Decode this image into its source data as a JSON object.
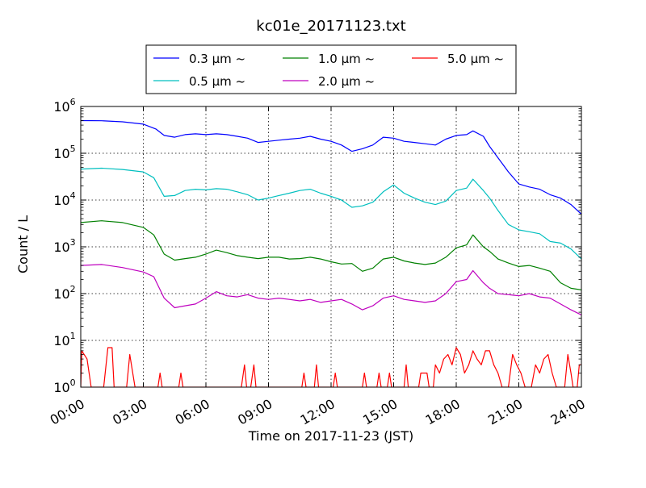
{
  "chart_data": {
    "type": "line",
    "title": "kc01e_20171123.txt",
    "xlabel": "Time on 2017-11-23 (JST)",
    "ylabel": "Count / L",
    "x_unit": "hours",
    "xlim": [
      0,
      24
    ],
    "ylim": [
      1,
      1000000
    ],
    "yscale": "log",
    "grid": true,
    "legend_position": "top-center",
    "x_tick_labels": [
      "00:00",
      "03:00",
      "06:00",
      "09:00",
      "12:00",
      "15:00",
      "18:00",
      "21:00",
      "24:00"
    ],
    "y_tick_labels": [
      {
        "base": "10",
        "exp": "0"
      },
      {
        "base": "10",
        "exp": "1"
      },
      {
        "base": "10",
        "exp": "2"
      },
      {
        "base": "10",
        "exp": "3"
      },
      {
        "base": "10",
        "exp": "4"
      },
      {
        "base": "10",
        "exp": "5"
      },
      {
        "base": "10",
        "exp": "6"
      }
    ],
    "series": [
      {
        "name": "0.3 μm ~",
        "color": "#0000ff",
        "points": [
          [
            0,
            500000
          ],
          [
            1,
            495000
          ],
          [
            2,
            470000
          ],
          [
            3,
            420000
          ],
          [
            3.6,
            330000
          ],
          [
            4,
            240000
          ],
          [
            4.5,
            220000
          ],
          [
            5,
            250000
          ],
          [
            5.5,
            260000
          ],
          [
            6,
            250000
          ],
          [
            6.5,
            260000
          ],
          [
            7,
            250000
          ],
          [
            7.5,
            230000
          ],
          [
            8,
            210000
          ],
          [
            8.5,
            170000
          ],
          [
            9,
            180000
          ],
          [
            9.5,
            190000
          ],
          [
            10,
            200000
          ],
          [
            10.5,
            210000
          ],
          [
            11,
            230000
          ],
          [
            11.5,
            200000
          ],
          [
            12,
            180000
          ],
          [
            12.5,
            150000
          ],
          [
            13,
            110000
          ],
          [
            13.5,
            125000
          ],
          [
            14,
            150000
          ],
          [
            14.5,
            220000
          ],
          [
            15,
            210000
          ],
          [
            15.5,
            180000
          ],
          [
            16,
            170000
          ],
          [
            16.5,
            160000
          ],
          [
            17,
            150000
          ],
          [
            17.5,
            200000
          ],
          [
            18,
            240000
          ],
          [
            18.5,
            250000
          ],
          [
            18.8,
            300000
          ],
          [
            19.3,
            230000
          ],
          [
            19.6,
            140000
          ],
          [
            20,
            80000
          ],
          [
            20.5,
            40000
          ],
          [
            21,
            22000
          ],
          [
            21.5,
            19000
          ],
          [
            22,
            17000
          ],
          [
            22.5,
            13000
          ],
          [
            23,
            11000
          ],
          [
            23.5,
            8000
          ],
          [
            24,
            5000
          ]
        ]
      },
      {
        "name": "0.5 μm ~",
        "color": "#00bfbf",
        "points": [
          [
            0,
            46000
          ],
          [
            1,
            48000
          ],
          [
            2,
            45000
          ],
          [
            3,
            40000
          ],
          [
            3.5,
            30000
          ],
          [
            4,
            12000
          ],
          [
            4.5,
            12500
          ],
          [
            5,
            16000
          ],
          [
            5.5,
            17000
          ],
          [
            6,
            16500
          ],
          [
            6.5,
            17500
          ],
          [
            7,
            17000
          ],
          [
            7.5,
            15000
          ],
          [
            8,
            13000
          ],
          [
            8.5,
            10000
          ],
          [
            9,
            11000
          ],
          [
            9.5,
            12500
          ],
          [
            10,
            14000
          ],
          [
            10.5,
            16000
          ],
          [
            11,
            17000
          ],
          [
            11.5,
            14000
          ],
          [
            12,
            12000
          ],
          [
            12.5,
            10000
          ],
          [
            13,
            7000
          ],
          [
            13.5,
            7500
          ],
          [
            14,
            9000
          ],
          [
            14.5,
            15000
          ],
          [
            15,
            21000
          ],
          [
            15.5,
            14000
          ],
          [
            16,
            11000
          ],
          [
            16.5,
            9000
          ],
          [
            17,
            8000
          ],
          [
            17.5,
            9500
          ],
          [
            18,
            16000
          ],
          [
            18.5,
            18000
          ],
          [
            18.8,
            28000
          ],
          [
            19.3,
            16000
          ],
          [
            19.6,
            11000
          ],
          [
            20,
            6000
          ],
          [
            20.5,
            3000
          ],
          [
            21,
            2300
          ],
          [
            21.5,
            2100
          ],
          [
            22,
            1900
          ],
          [
            22.5,
            1300
          ],
          [
            23,
            1200
          ],
          [
            23.5,
            900
          ],
          [
            24,
            550
          ]
        ]
      },
      {
        "name": "1.0 μm ~",
        "color": "#008000",
        "points": [
          [
            0,
            3300
          ],
          [
            1,
            3600
          ],
          [
            2,
            3300
          ],
          [
            3,
            2600
          ],
          [
            3.5,
            1800
          ],
          [
            4,
            700
          ],
          [
            4.5,
            520
          ],
          [
            5,
            560
          ],
          [
            5.5,
            600
          ],
          [
            6,
            700
          ],
          [
            6.5,
            850
          ],
          [
            7,
            750
          ],
          [
            7.5,
            650
          ],
          [
            8,
            600
          ],
          [
            8.5,
            560
          ],
          [
            9,
            600
          ],
          [
            9.5,
            600
          ],
          [
            10,
            550
          ],
          [
            10.5,
            560
          ],
          [
            11,
            600
          ],
          [
            11.5,
            550
          ],
          [
            12,
            480
          ],
          [
            12.5,
            430
          ],
          [
            13,
            440
          ],
          [
            13.5,
            300
          ],
          [
            14,
            350
          ],
          [
            14.5,
            550
          ],
          [
            15,
            600
          ],
          [
            15.5,
            500
          ],
          [
            16,
            450
          ],
          [
            16.5,
            420
          ],
          [
            17,
            450
          ],
          [
            17.5,
            600
          ],
          [
            18,
            950
          ],
          [
            18.5,
            1100
          ],
          [
            18.8,
            1800
          ],
          [
            19.3,
            1000
          ],
          [
            19.6,
            800
          ],
          [
            20,
            550
          ],
          [
            20.5,
            450
          ],
          [
            21,
            380
          ],
          [
            21.5,
            400
          ],
          [
            22,
            350
          ],
          [
            22.5,
            300
          ],
          [
            23,
            170
          ],
          [
            23.5,
            130
          ],
          [
            24,
            120
          ]
        ]
      },
      {
        "name": "2.0 μm ~",
        "color": "#bf00bf",
        "points": [
          [
            0,
            400
          ],
          [
            1,
            420
          ],
          [
            2,
            360
          ],
          [
            3,
            290
          ],
          [
            3.5,
            230
          ],
          [
            4,
            80
          ],
          [
            4.5,
            50
          ],
          [
            5,
            55
          ],
          [
            5.5,
            60
          ],
          [
            6,
            80
          ],
          [
            6.5,
            110
          ],
          [
            7,
            90
          ],
          [
            7.5,
            85
          ],
          [
            8,
            95
          ],
          [
            8.5,
            80
          ],
          [
            9,
            75
          ],
          [
            9.5,
            80
          ],
          [
            10,
            75
          ],
          [
            10.5,
            70
          ],
          [
            11,
            75
          ],
          [
            11.5,
            65
          ],
          [
            12,
            70
          ],
          [
            12.5,
            75
          ],
          [
            13,
            60
          ],
          [
            13.5,
            45
          ],
          [
            14,
            55
          ],
          [
            14.5,
            80
          ],
          [
            15,
            90
          ],
          [
            15.5,
            75
          ],
          [
            16,
            70
          ],
          [
            16.5,
            65
          ],
          [
            17,
            70
          ],
          [
            17.5,
            100
          ],
          [
            18,
            180
          ],
          [
            18.5,
            200
          ],
          [
            18.8,
            310
          ],
          [
            19.3,
            170
          ],
          [
            19.6,
            130
          ],
          [
            20,
            100
          ],
          [
            20.5,
            95
          ],
          [
            21,
            90
          ],
          [
            21.5,
            100
          ],
          [
            22,
            85
          ],
          [
            22.5,
            80
          ],
          [
            23,
            60
          ],
          [
            23.5,
            45
          ],
          [
            24,
            35
          ]
        ]
      },
      {
        "name": "5.0 μm ~",
        "color": "#ff0000",
        "points": [
          [
            0,
            1
          ],
          [
            0.05,
            6
          ],
          [
            0.3,
            4
          ],
          [
            0.5,
            1
          ],
          [
            1.1,
            1
          ],
          [
            1.3,
            7
          ],
          [
            1.5,
            7
          ],
          [
            1.6,
            1
          ],
          [
            2.2,
            1
          ],
          [
            2.35,
            5
          ],
          [
            2.6,
            1
          ],
          [
            3.7,
            1
          ],
          [
            3.8,
            2
          ],
          [
            3.9,
            1
          ],
          [
            4.7,
            1
          ],
          [
            4.8,
            2
          ],
          [
            4.9,
            1
          ],
          [
            7.7,
            1
          ],
          [
            7.85,
            3
          ],
          [
            7.95,
            1
          ],
          [
            8.15,
            1
          ],
          [
            8.3,
            3
          ],
          [
            8.4,
            1
          ],
          [
            10.6,
            1
          ],
          [
            10.7,
            2
          ],
          [
            10.8,
            1
          ],
          [
            11.2,
            1
          ],
          [
            11.3,
            3
          ],
          [
            11.4,
            1
          ],
          [
            12.1,
            1
          ],
          [
            12.2,
            2
          ],
          [
            12.3,
            1
          ],
          [
            13.5,
            1
          ],
          [
            13.6,
            2
          ],
          [
            13.7,
            1
          ],
          [
            14.2,
            1
          ],
          [
            14.3,
            2
          ],
          [
            14.4,
            1
          ],
          [
            14.7,
            1
          ],
          [
            14.8,
            2
          ],
          [
            14.9,
            1
          ],
          [
            15.5,
            1
          ],
          [
            15.6,
            3
          ],
          [
            15.7,
            1
          ],
          [
            16.2,
            1
          ],
          [
            16.3,
            2
          ],
          [
            16.6,
            2
          ],
          [
            16.7,
            1
          ],
          [
            16.9,
            1
          ],
          [
            17,
            3
          ],
          [
            17.2,
            2
          ],
          [
            17.4,
            4
          ],
          [
            17.6,
            5
          ],
          [
            17.8,
            3
          ],
          [
            18,
            7
          ],
          [
            18.2,
            5
          ],
          [
            18.4,
            2
          ],
          [
            18.6,
            3
          ],
          [
            18.8,
            6
          ],
          [
            19,
            4
          ],
          [
            19.2,
            3
          ],
          [
            19.4,
            6
          ],
          [
            19.6,
            6
          ],
          [
            19.8,
            3
          ],
          [
            20,
            2
          ],
          [
            20.2,
            1
          ],
          [
            20.5,
            1
          ],
          [
            20.7,
            5
          ],
          [
            20.9,
            3
          ],
          [
            21.1,
            2
          ],
          [
            21.3,
            1
          ],
          [
            21.6,
            1
          ],
          [
            21.8,
            3
          ],
          [
            22,
            2
          ],
          [
            22.2,
            4
          ],
          [
            22.4,
            5
          ],
          [
            22.6,
            2
          ],
          [
            22.8,
            1
          ],
          [
            23.2,
            1
          ],
          [
            23.35,
            5
          ],
          [
            23.5,
            2
          ],
          [
            23.6,
            1
          ],
          [
            23.8,
            1
          ],
          [
            23.9,
            3
          ],
          [
            24,
            3
          ]
        ]
      }
    ]
  }
}
